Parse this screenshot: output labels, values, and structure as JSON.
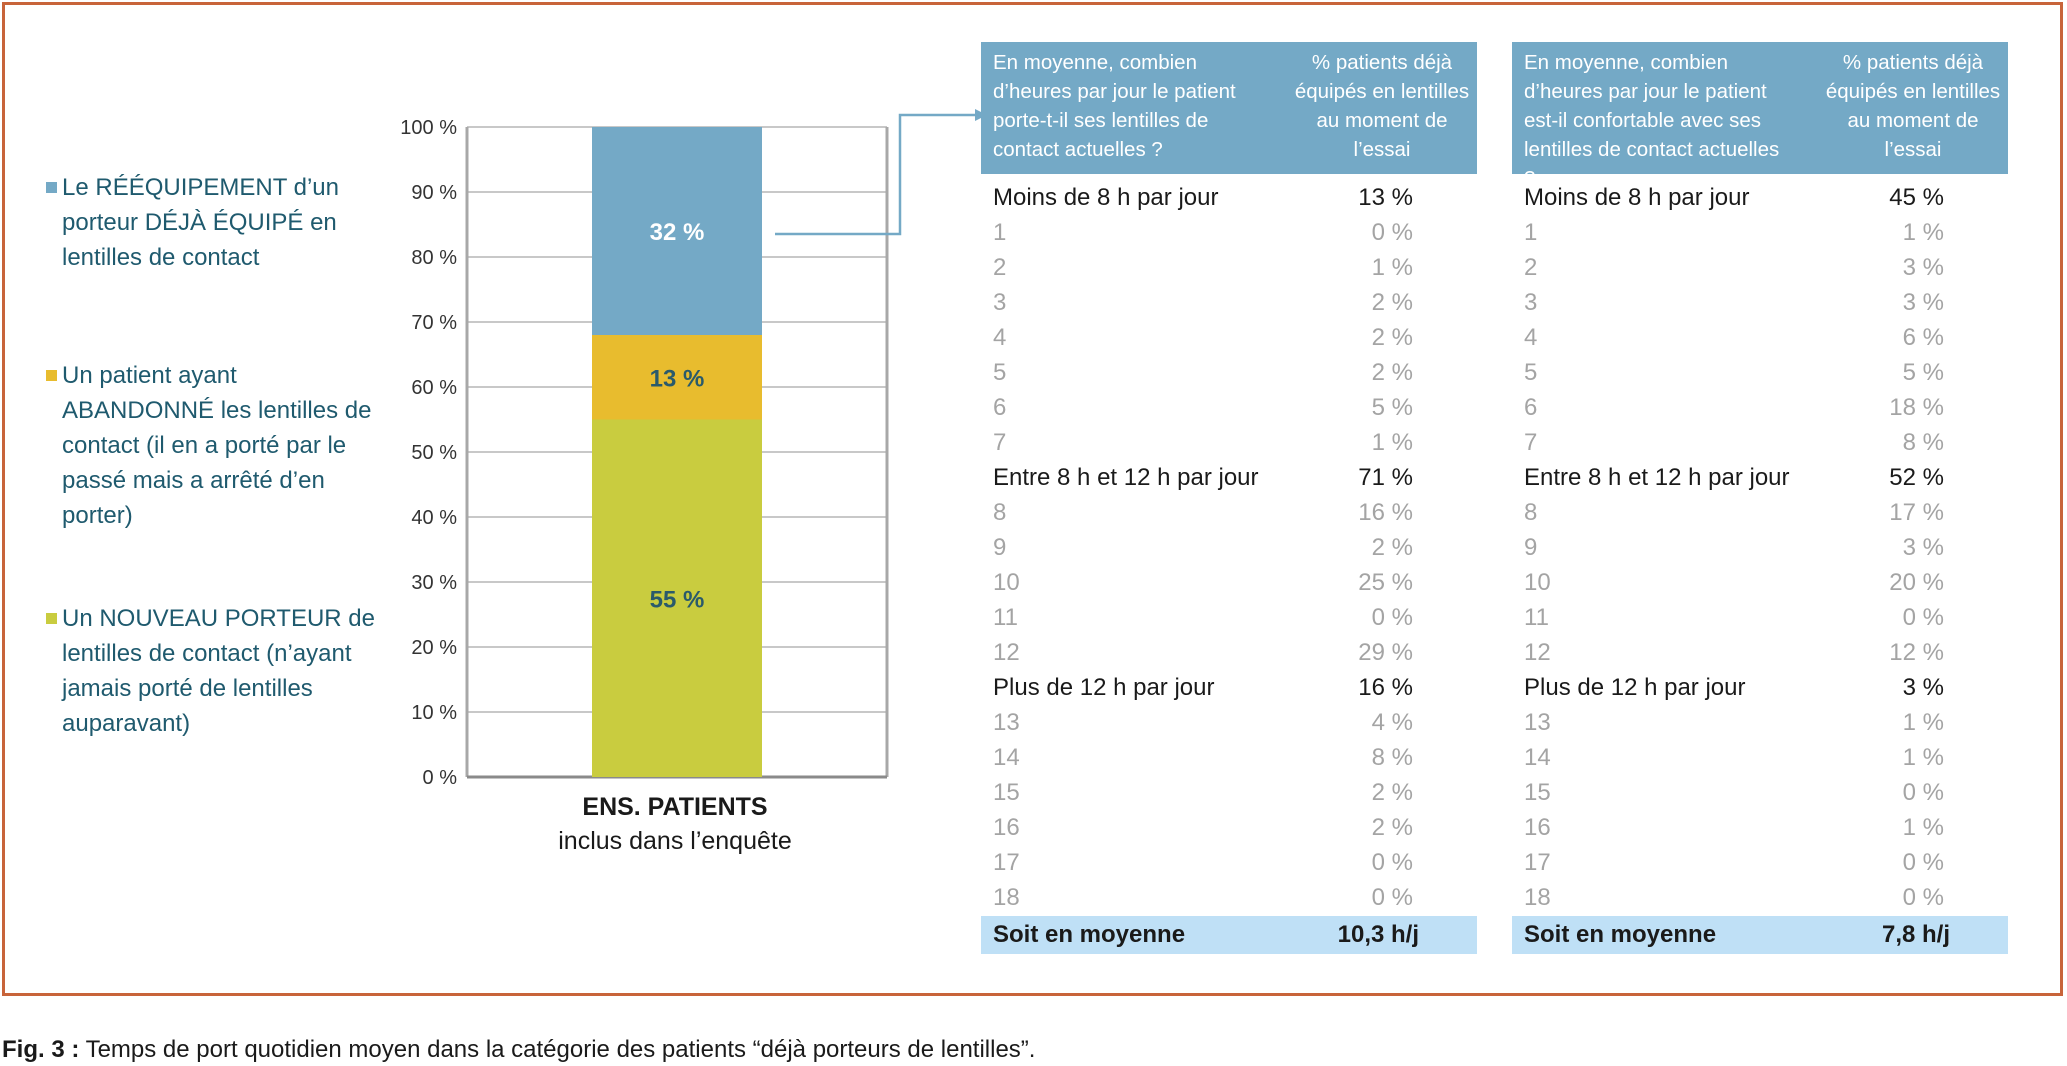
{
  "colors": {
    "frame": "#c8643a",
    "blue": "#74a9c6",
    "yellow": "#e8bc2e",
    "green": "#c9cc3f",
    "header_bg": "#74a9c6",
    "footer_bg": "#bfe0f6",
    "legend_text": "#1f5a6e"
  },
  "legend": [
    {
      "color": "#74a9c6",
      "text": "Le RÉÉQUIPEMENT d’un porteur DÉJÀ ÉQUIPÉ en lentilles de contact"
    },
    {
      "color": "#e8bc2e",
      "text": "Un patient ayant ABANDONNÉ les lentilles de contact (il en a porté par le passé mais a arrêté d’en porter)"
    },
    {
      "color": "#c9cc3f",
      "text": "Un NOUVEAU PORTEUR de lentilles de contact (n’ayant jamais porté de lentilles auparavant)"
    }
  ],
  "chart_data": {
    "type": "bar",
    "stacked": true,
    "categories": [
      "ENS. PATIENTS inclus dans l’enquête"
    ],
    "series": [
      {
        "name": "Un NOUVEAU PORTEUR de lentilles de contact",
        "values": [
          55
        ],
        "label": "55 %",
        "color": "#c9cc3f"
      },
      {
        "name": "Un patient ayant ABANDONNÉ les lentilles de contact",
        "values": [
          13
        ],
        "label": "13 %",
        "color": "#e8bc2e"
      },
      {
        "name": "Le RÉÉQUIPEMENT d’un porteur DÉJÀ ÉQUIPÉ",
        "values": [
          32
        ],
        "label": "32 %",
        "color": "#74a9c6"
      }
    ],
    "ylim": [
      0,
      100
    ],
    "yticks": [
      "0 %",
      "10 %",
      "20 %",
      "30 %",
      "40 %",
      "50 %",
      "60 %",
      "70 %",
      "80 %",
      "90 %",
      "100 %"
    ],
    "xlabel_bold": "ENS. PATIENTS",
    "xlabel": "inclus dans l’enquête",
    "grid": true
  },
  "tables": [
    {
      "header_question": "En moyenne, combien d’heures par jour le patient porte-t-il ses lentilles de contact actuelles ?",
      "header_pct": "% patients déjà équipés en lentilles au moment de l’essai",
      "rows": [
        {
          "k": "Moins de 8 h par jour",
          "v": "13 %",
          "group": true
        },
        {
          "k": "1",
          "v": "0 %"
        },
        {
          "k": "2",
          "v": "1 %"
        },
        {
          "k": "3",
          "v": "2 %"
        },
        {
          "k": "4",
          "v": "2 %"
        },
        {
          "k": "5",
          "v": "2 %"
        },
        {
          "k": "6",
          "v": "5 %"
        },
        {
          "k": "7",
          "v": "1 %"
        },
        {
          "k": "Entre 8 h et 12 h par jour",
          "v": "71 %",
          "group": true
        },
        {
          "k": "8",
          "v": "16 %"
        },
        {
          "k": "9",
          "v": "2 %"
        },
        {
          "k": "10",
          "v": "25 %"
        },
        {
          "k": "11",
          "v": "0 %"
        },
        {
          "k": "12",
          "v": "29 %"
        },
        {
          "k": "Plus de 12 h par jour",
          "v": "16 %",
          "group": true
        },
        {
          "k": "13",
          "v": "4 %"
        },
        {
          "k": "14",
          "v": "8 %"
        },
        {
          "k": "15",
          "v": "2 %"
        },
        {
          "k": "16",
          "v": "2 %"
        },
        {
          "k": "17",
          "v": "0 %"
        },
        {
          "k": "18",
          "v": "0 %"
        }
      ],
      "footer_label": "Soit en moyenne",
      "footer_value": "10,3 h/j"
    },
    {
      "header_question": "En moyenne, combien d’heures par jour le patient est-il confortable avec ses lentilles de contact actuelles ?",
      "header_pct": "% patients déjà équipés en lentilles au moment de l’essai",
      "rows": [
        {
          "k": "Moins de 8 h par jour",
          "v": "45 %",
          "group": true
        },
        {
          "k": "1",
          "v": "1 %"
        },
        {
          "k": "2",
          "v": "3 %"
        },
        {
          "k": "3",
          "v": "3 %"
        },
        {
          "k": "4",
          "v": "6 %"
        },
        {
          "k": "5",
          "v": "5 %"
        },
        {
          "k": "6",
          "v": "18 %"
        },
        {
          "k": "7",
          "v": "8 %"
        },
        {
          "k": "Entre 8 h et 12 h par jour",
          "v": "52 %",
          "group": true
        },
        {
          "k": "8",
          "v": "17 %"
        },
        {
          "k": "9",
          "v": "3 %"
        },
        {
          "k": "10",
          "v": "20 %"
        },
        {
          "k": "11",
          "v": "0 %"
        },
        {
          "k": "12",
          "v": "12 %"
        },
        {
          "k": "Plus de 12 h par jour",
          "v": "3 %",
          "group": true
        },
        {
          "k": "13",
          "v": "1 %"
        },
        {
          "k": "14",
          "v": "1 %"
        },
        {
          "k": "15",
          "v": "0 %"
        },
        {
          "k": "16",
          "v": "1 %"
        },
        {
          "k": "17",
          "v": "0 %"
        },
        {
          "k": "18",
          "v": "0 %"
        }
      ],
      "footer_label": "Soit en moyenne",
      "footer_value": "7,8 h/j"
    }
  ],
  "caption": {
    "label": "Fig. 3 :",
    "text": " Temps de port quotidien moyen dans la catégorie des patients “déjà porteurs de lentilles”."
  }
}
